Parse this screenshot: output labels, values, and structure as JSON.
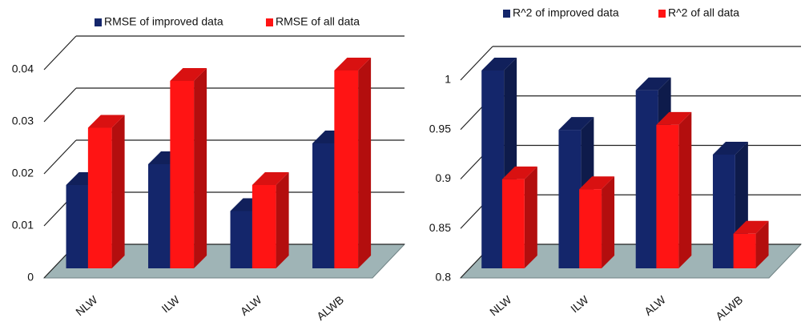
{
  "chart_data": [
    {
      "type": "bar3d",
      "categories": [
        "NLW",
        "ILW",
        "ALW",
        "ALWB"
      ],
      "series": [
        {
          "name": "RMSE of improved data",
          "color": "#14266b",
          "values": [
            0.016,
            0.02,
            0.011,
            0.024
          ]
        },
        {
          "name": "RMSE of all data",
          "color": "#ff1414",
          "values": [
            0.027,
            0.036,
            0.016,
            0.038
          ]
        }
      ],
      "ylim": [
        0,
        0.04
      ],
      "yticks": [
        0,
        0.01,
        0.02,
        0.03,
        0.04
      ],
      "grid": true,
      "floor_color": "#9fb4b6"
    },
    {
      "type": "bar3d",
      "categories": [
        "NLW",
        "ILW",
        "ALW",
        "ALWB"
      ],
      "series": [
        {
          "name": "R^2 of improved data",
          "color": "#14266b",
          "values": [
            1.0,
            0.94,
            0.98,
            0.915
          ]
        },
        {
          "name": "R^2 of all data",
          "color": "#ff1414",
          "values": [
            0.89,
            0.88,
            0.945,
            0.835
          ]
        }
      ],
      "ylim": [
        0.8,
        1
      ],
      "yticks": [
        0.8,
        0.85,
        0.9,
        0.95,
        1
      ],
      "grid": true,
      "floor_color": "#9fb4b6"
    }
  ]
}
